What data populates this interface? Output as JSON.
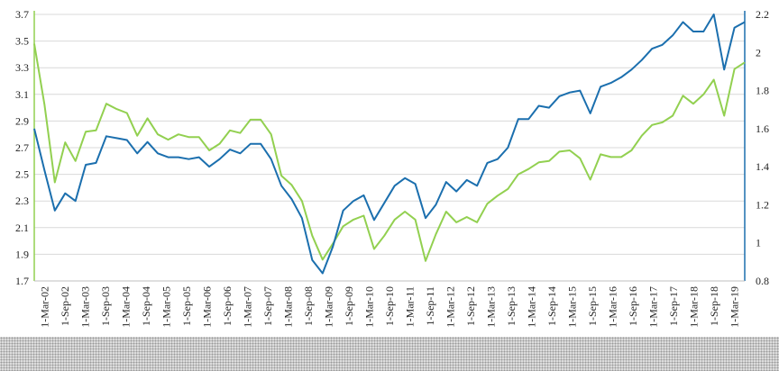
{
  "chart_data": {
    "type": "line",
    "title": "",
    "xlabel": "",
    "ylabel": "",
    "y_left": {
      "min": 1.7,
      "max": 3.7,
      "ticks": [
        "1.7",
        "1.9",
        "2.1",
        "2.3",
        "2.5",
        "2.7",
        "2.9",
        "3.1",
        "3.3",
        "3.5",
        "3.7"
      ]
    },
    "y_right": {
      "min": 0.8,
      "max": 2.2,
      "ticks": [
        "0.8",
        "1",
        "1.2",
        "1.4",
        "1.6",
        "1.8",
        "2",
        "2.2"
      ]
    },
    "x_ticks": [
      "1-Mar-02",
      "1-Sep-02",
      "1-Mar-03",
      "1-Sep-03",
      "1-Mar-04",
      "1-Sep-04",
      "1-Mar-05",
      "1-Sep-05",
      "1-Mar-06",
      "1-Sep-06",
      "1-Mar-07",
      "1-Sep-07",
      "1-Mar-08",
      "1-Sep-08",
      "1-Mar-09",
      "1-Sep-09",
      "1-Mar-10",
      "1-Sep-10",
      "1-Mar-11",
      "1-Sep-11",
      "1-Mar-12",
      "1-Sep-12",
      "1-Mar-13",
      "1-Sep-13",
      "1-Mar-14",
      "1-Sep-14",
      "1-Mar-15",
      "1-Sep-15",
      "1-Mar-16",
      "1-Sep-16",
      "1-Mar-17",
      "1-Sep-17",
      "1-Mar-18",
      "1-Sep-18",
      "1-Mar-19"
    ],
    "grid": true,
    "legend": "none",
    "series": [
      {
        "axis": "left",
        "color": "#92d050",
        "values": [
          3.48,
          3.02,
          2.44,
          2.74,
          2.6,
          2.82,
          2.83,
          3.03,
          2.99,
          2.96,
          2.79,
          2.92,
          2.8,
          2.76,
          2.8,
          2.78,
          2.78,
          2.68,
          2.73,
          2.83,
          2.81,
          2.91,
          2.91,
          2.8,
          2.49,
          2.42,
          2.3,
          2.04,
          1.86,
          1.98,
          2.11,
          2.16,
          2.19,
          1.94,
          2.04,
          2.16,
          2.22,
          2.16,
          1.85,
          2.05,
          2.22,
          2.14,
          2.18,
          2.14,
          2.28,
          2.34,
          2.39,
          2.5,
          2.54,
          2.59,
          2.6,
          2.67,
          2.68,
          2.62,
          2.46,
          2.65,
          2.63,
          2.63,
          2.68,
          2.79,
          2.87,
          2.89,
          2.94,
          3.09,
          3.03,
          3.1,
          3.21,
          2.94,
          3.29,
          3.34
        ]
      },
      {
        "axis": "right",
        "color": "#1b6fae",
        "values": [
          1.6,
          1.38,
          1.17,
          1.26,
          1.22,
          1.41,
          1.42,
          1.56,
          1.55,
          1.54,
          1.47,
          1.53,
          1.47,
          1.45,
          1.45,
          1.44,
          1.45,
          1.4,
          1.44,
          1.49,
          1.47,
          1.52,
          1.52,
          1.44,
          1.3,
          1.23,
          1.13,
          0.91,
          0.84,
          0.98,
          1.17,
          1.22,
          1.25,
          1.12,
          1.21,
          1.3,
          1.34,
          1.31,
          1.13,
          1.2,
          1.32,
          1.27,
          1.33,
          1.3,
          1.42,
          1.44,
          1.5,
          1.65,
          1.65,
          1.72,
          1.71,
          1.77,
          1.79,
          1.8,
          1.68,
          1.82,
          1.84,
          1.87,
          1.91,
          1.96,
          2.02,
          2.04,
          2.09,
          2.16,
          2.11,
          2.11,
          2.2,
          1.91,
          2.13,
          2.16
        ]
      }
    ]
  },
  "colors": {
    "left_axis": "#92d050",
    "right_axis": "#1b6fae",
    "gridline": "#d9d9d9"
  }
}
